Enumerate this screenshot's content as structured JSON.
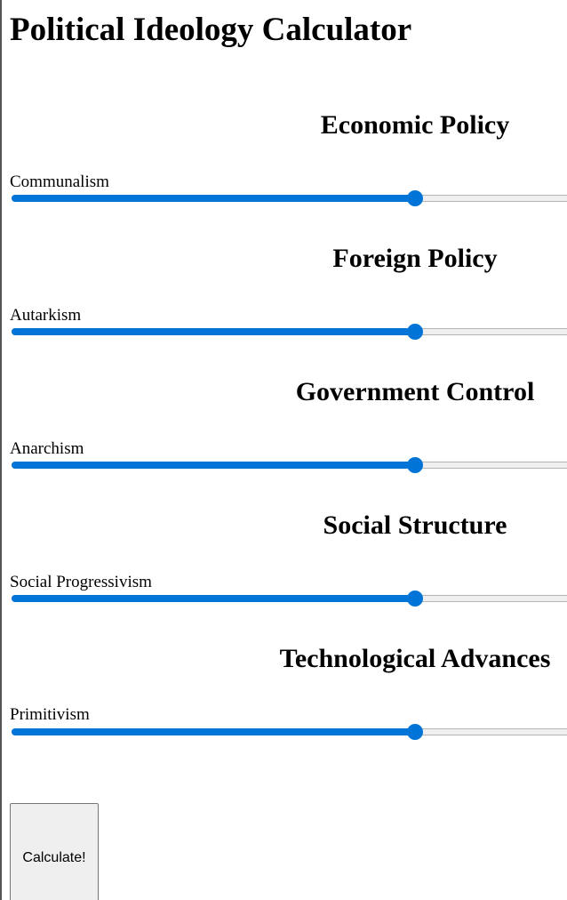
{
  "page_title": "Political Ideology Calculator",
  "accent_color": "#0075d7",
  "sections": [
    {
      "title": "Economic Policy",
      "left_label": "Communalism",
      "slider_value_fraction": 0.71
    },
    {
      "title": "Foreign Policy",
      "left_label": "Autarkism",
      "slider_value_fraction": 0.71
    },
    {
      "title": "Government Control",
      "left_label": "Anarchism",
      "slider_value_fraction": 0.71
    },
    {
      "title": "Social Structure",
      "left_label": "Social Progressivism",
      "slider_value_fraction": 0.71
    },
    {
      "title": "Technological Advances",
      "left_label": "Primitivism",
      "slider_value_fraction": 0.71
    }
  ],
  "calculate_button": {
    "label": "Calculate!"
  }
}
